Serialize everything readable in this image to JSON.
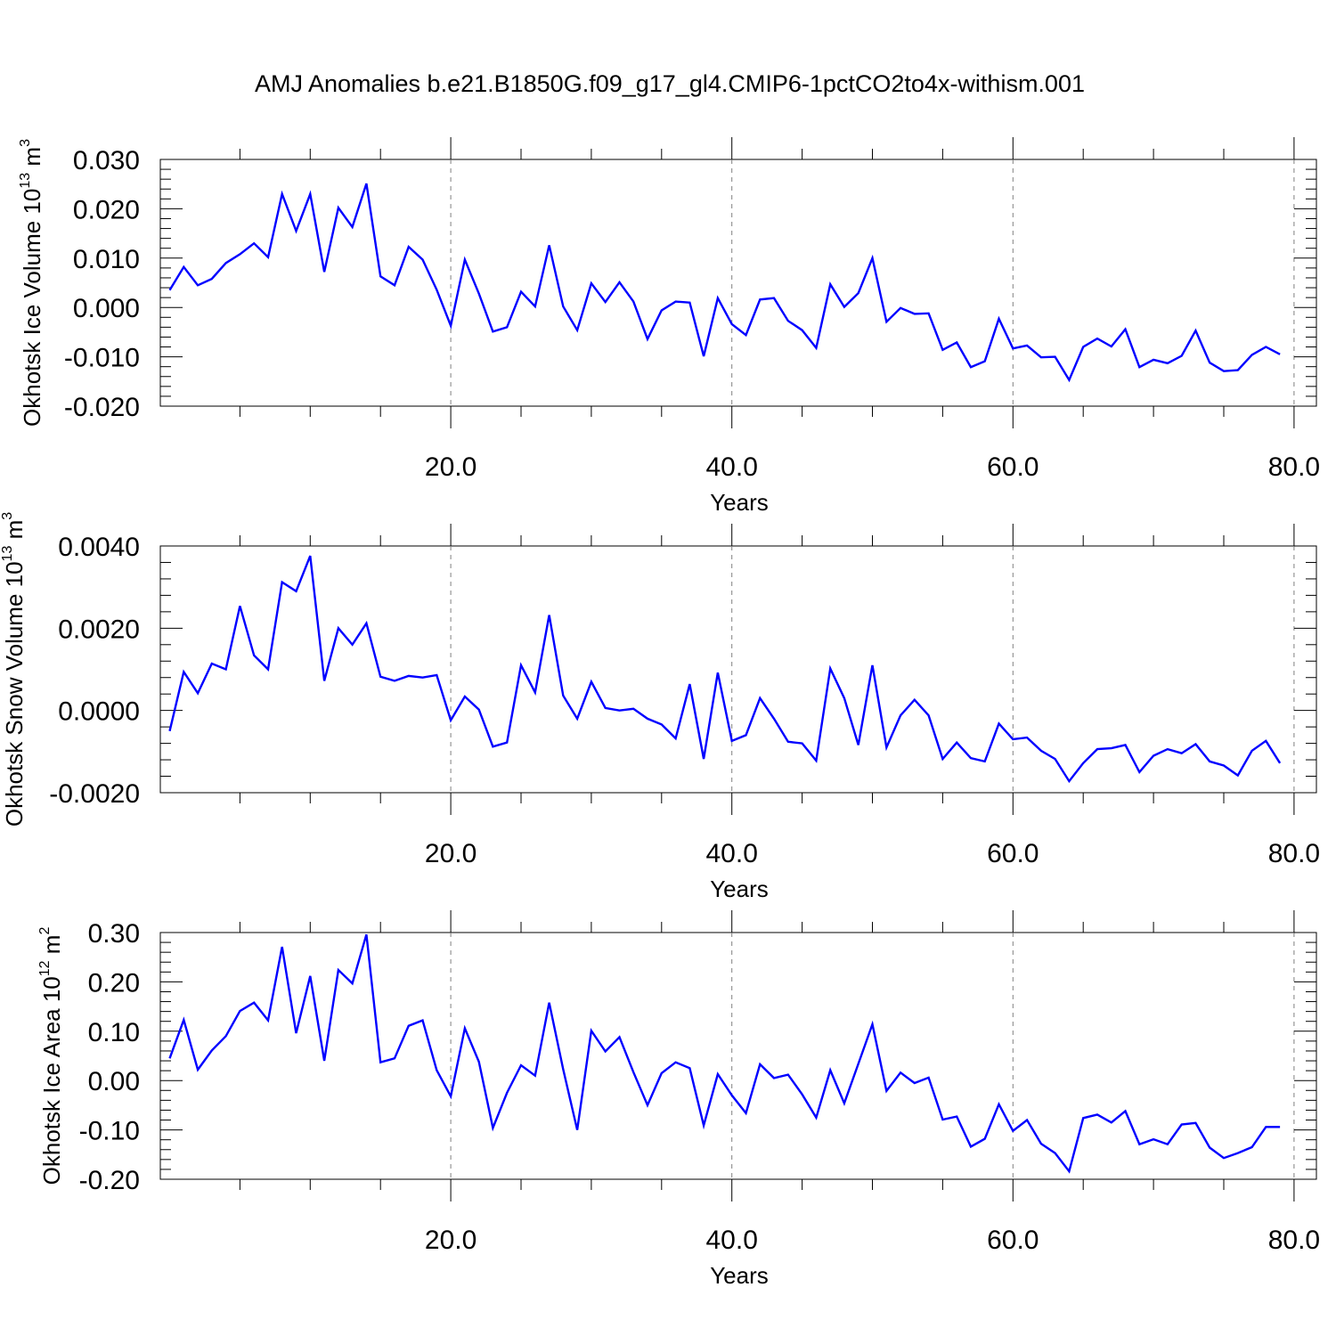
{
  "title": "AMJ Anomalies b.e21.B1850G.f09_g17_gl4.CMIP6-1pctCO2to4x-withism.001",
  "colors": {
    "line": "#0000ff",
    "axis": "#000000",
    "grid": "#808080"
  },
  "chart_data": [
    {
      "type": "line",
      "ylabel": {
        "text": "Okhotsk Ice Volume 10",
        "exp": "13",
        "unit": " m",
        "unit_exp": "3"
      },
      "xlabel": "Years",
      "xlim": [
        0,
        80
      ],
      "ylim": [
        -0.02,
        0.03
      ],
      "x_ticks": [
        20,
        40,
        60,
        80
      ],
      "x_tick_labels": [
        "20.0",
        "40.0",
        "60.0",
        "80.0"
      ],
      "y_ticks": [
        -0.02,
        -0.01,
        0.0,
        0.01,
        0.02,
        0.03
      ],
      "y_tick_labels": [
        "-0.020",
        "-0.010",
        "0.000",
        "0.010",
        "0.020",
        "0.030"
      ],
      "y_minor_step": 0.002,
      "grid": "vertical dashed at major x ticks",
      "series": [
        {
          "x_start": 0,
          "x_step": 1,
          "values": [
            0.0035,
            0.0082,
            0.0045,
            0.0058,
            0.009,
            0.0108,
            0.013,
            0.0102,
            0.023,
            0.0155,
            0.023,
            0.0072,
            0.0202,
            0.0163,
            0.0251,
            0.0063,
            0.0045,
            0.0123,
            0.0097,
            0.0036,
            -0.0037,
            0.0097,
            0.0028,
            -0.0049,
            -0.004,
            0.0032,
            0.0002,
            0.0126,
            0.0002,
            -0.0046,
            0.0049,
            0.0011,
            0.0051,
            0.0012,
            -0.0064,
            -0.0006,
            0.0012,
            0.001,
            -0.0099,
            0.0019,
            -0.0034,
            -0.0056,
            0.0016,
            0.0019,
            -0.0027,
            -0.0046,
            -0.0082,
            0.0047,
            0.0001,
            0.0029,
            0.01,
            -0.0029,
            -0.0001,
            -0.0013,
            -0.0012,
            -0.0086,
            -0.0071,
            -0.0121,
            -0.0109,
            -0.0023,
            -0.0083,
            -0.0077,
            -0.0101,
            -0.01,
            -0.0147,
            -0.008,
            -0.0063,
            -0.0079,
            -0.0044,
            -0.0121,
            -0.0106,
            -0.0113,
            -0.0098,
            -0.0047,
            -0.0112,
            -0.0129,
            -0.0127,
            -0.0096,
            -0.008,
            -0.0095
          ]
        }
      ]
    },
    {
      "type": "line",
      "ylabel": {
        "text": "Okhotsk Snow Volume 10",
        "exp": "13",
        "unit": " m",
        "unit_exp": "3"
      },
      "xlabel": "Years",
      "xlim": [
        0,
        80
      ],
      "ylim": [
        -0.002,
        0.004
      ],
      "x_ticks": [
        20,
        40,
        60,
        80
      ],
      "x_tick_labels": [
        "20.0",
        "40.0",
        "60.0",
        "80.0"
      ],
      "y_ticks": [
        -0.002,
        0.0,
        0.002,
        0.004
      ],
      "y_tick_labels": [
        "-0.0020",
        "0.0000",
        "0.0020",
        "0.0040"
      ],
      "y_minor_step": 0.0004,
      "grid": "vertical dashed at major x ticks",
      "series": [
        {
          "x_start": 0,
          "x_step": 1,
          "values": [
            -0.0005,
            0.00094,
            0.00042,
            0.00114,
            0.001,
            0.00254,
            0.00134,
            0.001,
            0.00312,
            0.0029,
            0.00376,
            0.00072,
            0.002,
            0.0016,
            0.00212,
            0.00082,
            0.00072,
            0.00084,
            0.0008,
            0.00086,
            -0.00024,
            0.00034,
            2e-05,
            -0.00088,
            -0.00078,
            0.0011,
            0.00044,
            0.00232,
            0.00036,
            -0.0002,
            0.0007,
            6e-05,
            0.0,
            4e-05,
            -0.0002,
            -0.00034,
            -0.00068,
            0.00064,
            -0.00118,
            0.00092,
            -0.00074,
            -0.0006,
            0.0003,
            -0.0002,
            -0.00076,
            -0.0008,
            -0.00122,
            0.00102,
            0.0003,
            -0.00084,
            0.0011,
            -0.0009,
            -0.00012,
            0.00026,
            -0.00012,
            -0.00118,
            -0.00078,
            -0.00116,
            -0.00124,
            -0.00032,
            -0.0007,
            -0.00066,
            -0.00098,
            -0.00118,
            -0.00172,
            -0.00128,
            -0.00094,
            -0.00092,
            -0.00084,
            -0.0015,
            -0.0011,
            -0.00094,
            -0.00104,
            -0.00082,
            -0.00124,
            -0.00134,
            -0.00158,
            -0.00098,
            -0.00074,
            -0.00128
          ]
        }
      ]
    },
    {
      "type": "line",
      "ylabel": {
        "text": "Okhotsk Ice Area 10",
        "exp": "12",
        "unit": " m",
        "unit_exp": "2"
      },
      "xlabel": "Years",
      "xlim": [
        0,
        80
      ],
      "ylim": [
        -0.2,
        0.3
      ],
      "x_ticks": [
        20,
        40,
        60,
        80
      ],
      "x_tick_labels": [
        "20.0",
        "40.0",
        "60.0",
        "80.0"
      ],
      "y_ticks": [
        -0.2,
        -0.1,
        0.0,
        0.1,
        0.2,
        0.3
      ],
      "y_tick_labels": [
        "-0.20",
        "-0.10",
        "0.00",
        "0.10",
        "0.20",
        "0.30"
      ],
      "y_minor_step": 0.02,
      "grid": "vertical dashed at major x ticks",
      "series": [
        {
          "x_start": 0,
          "x_step": 1,
          "values": [
            0.045,
            0.123,
            0.022,
            0.061,
            0.09,
            0.141,
            0.158,
            0.122,
            0.271,
            0.096,
            0.212,
            0.04,
            0.224,
            0.197,
            0.296,
            0.037,
            0.045,
            0.111,
            0.122,
            0.021,
            -0.032,
            0.106,
            0.038,
            -0.096,
            -0.025,
            0.031,
            0.01,
            0.158,
            0.023,
            -0.1,
            0.101,
            0.059,
            0.088,
            0.017,
            -0.05,
            0.015,
            0.037,
            0.025,
            -0.091,
            0.013,
            -0.03,
            -0.066,
            0.033,
            0.005,
            0.012,
            -0.028,
            -0.075,
            0.021,
            -0.046,
            0.034,
            0.114,
            -0.021,
            0.016,
            -0.005,
            0.006,
            -0.079,
            -0.073,
            -0.134,
            -0.118,
            -0.048,
            -0.102,
            -0.08,
            -0.128,
            -0.147,
            -0.184,
            -0.076,
            -0.069,
            -0.085,
            -0.062,
            -0.129,
            -0.119,
            -0.129,
            -0.089,
            -0.086,
            -0.136,
            -0.157,
            -0.147,
            -0.135,
            -0.094,
            -0.094
          ]
        }
      ]
    }
  ]
}
